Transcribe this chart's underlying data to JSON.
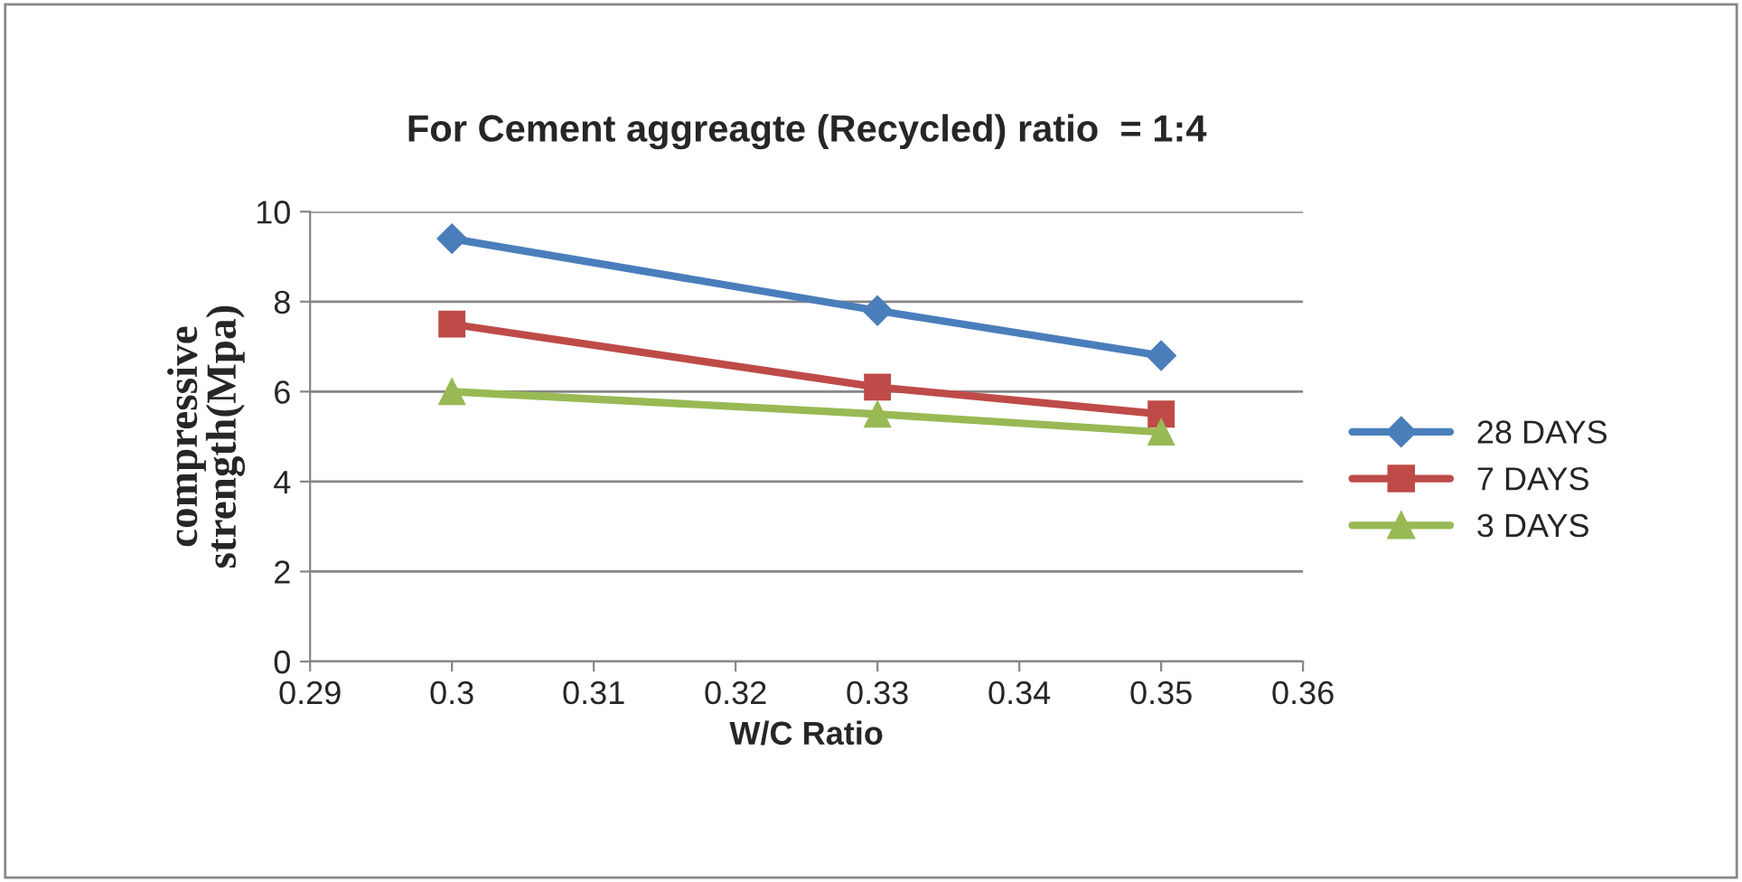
{
  "chart_data": {
    "type": "line",
    "title": "For Cement aggreagte (Recycled) ratio  = 1:4",
    "xlabel": "W/C Ratio",
    "ylabel": "compressive\nstrength(Mpa)",
    "x": [
      0.3,
      0.33,
      0.35
    ],
    "series": [
      {
        "name": "28 DAYS",
        "color": "#4a7ebb",
        "marker": "diamond",
        "values": [
          9.4,
          7.8,
          6.8
        ]
      },
      {
        "name": "7 DAYS",
        "color": "#be4b48",
        "marker": "square",
        "values": [
          7.5,
          6.1,
          5.5
        ]
      },
      {
        "name": "3 DAYS",
        "color": "#98b954",
        "marker": "triangle",
        "values": [
          6.0,
          5.5,
          5.1
        ]
      }
    ],
    "xlim": [
      0.29,
      0.36
    ],
    "xticks": [
      0.29,
      0.3,
      0.31,
      0.32,
      0.33,
      0.34,
      0.35,
      0.36
    ],
    "ylim": [
      0,
      10
    ],
    "yticks": [
      0,
      2,
      4,
      6,
      8,
      10
    ],
    "grid": "y",
    "legend": "right",
    "line_style": "solid"
  }
}
